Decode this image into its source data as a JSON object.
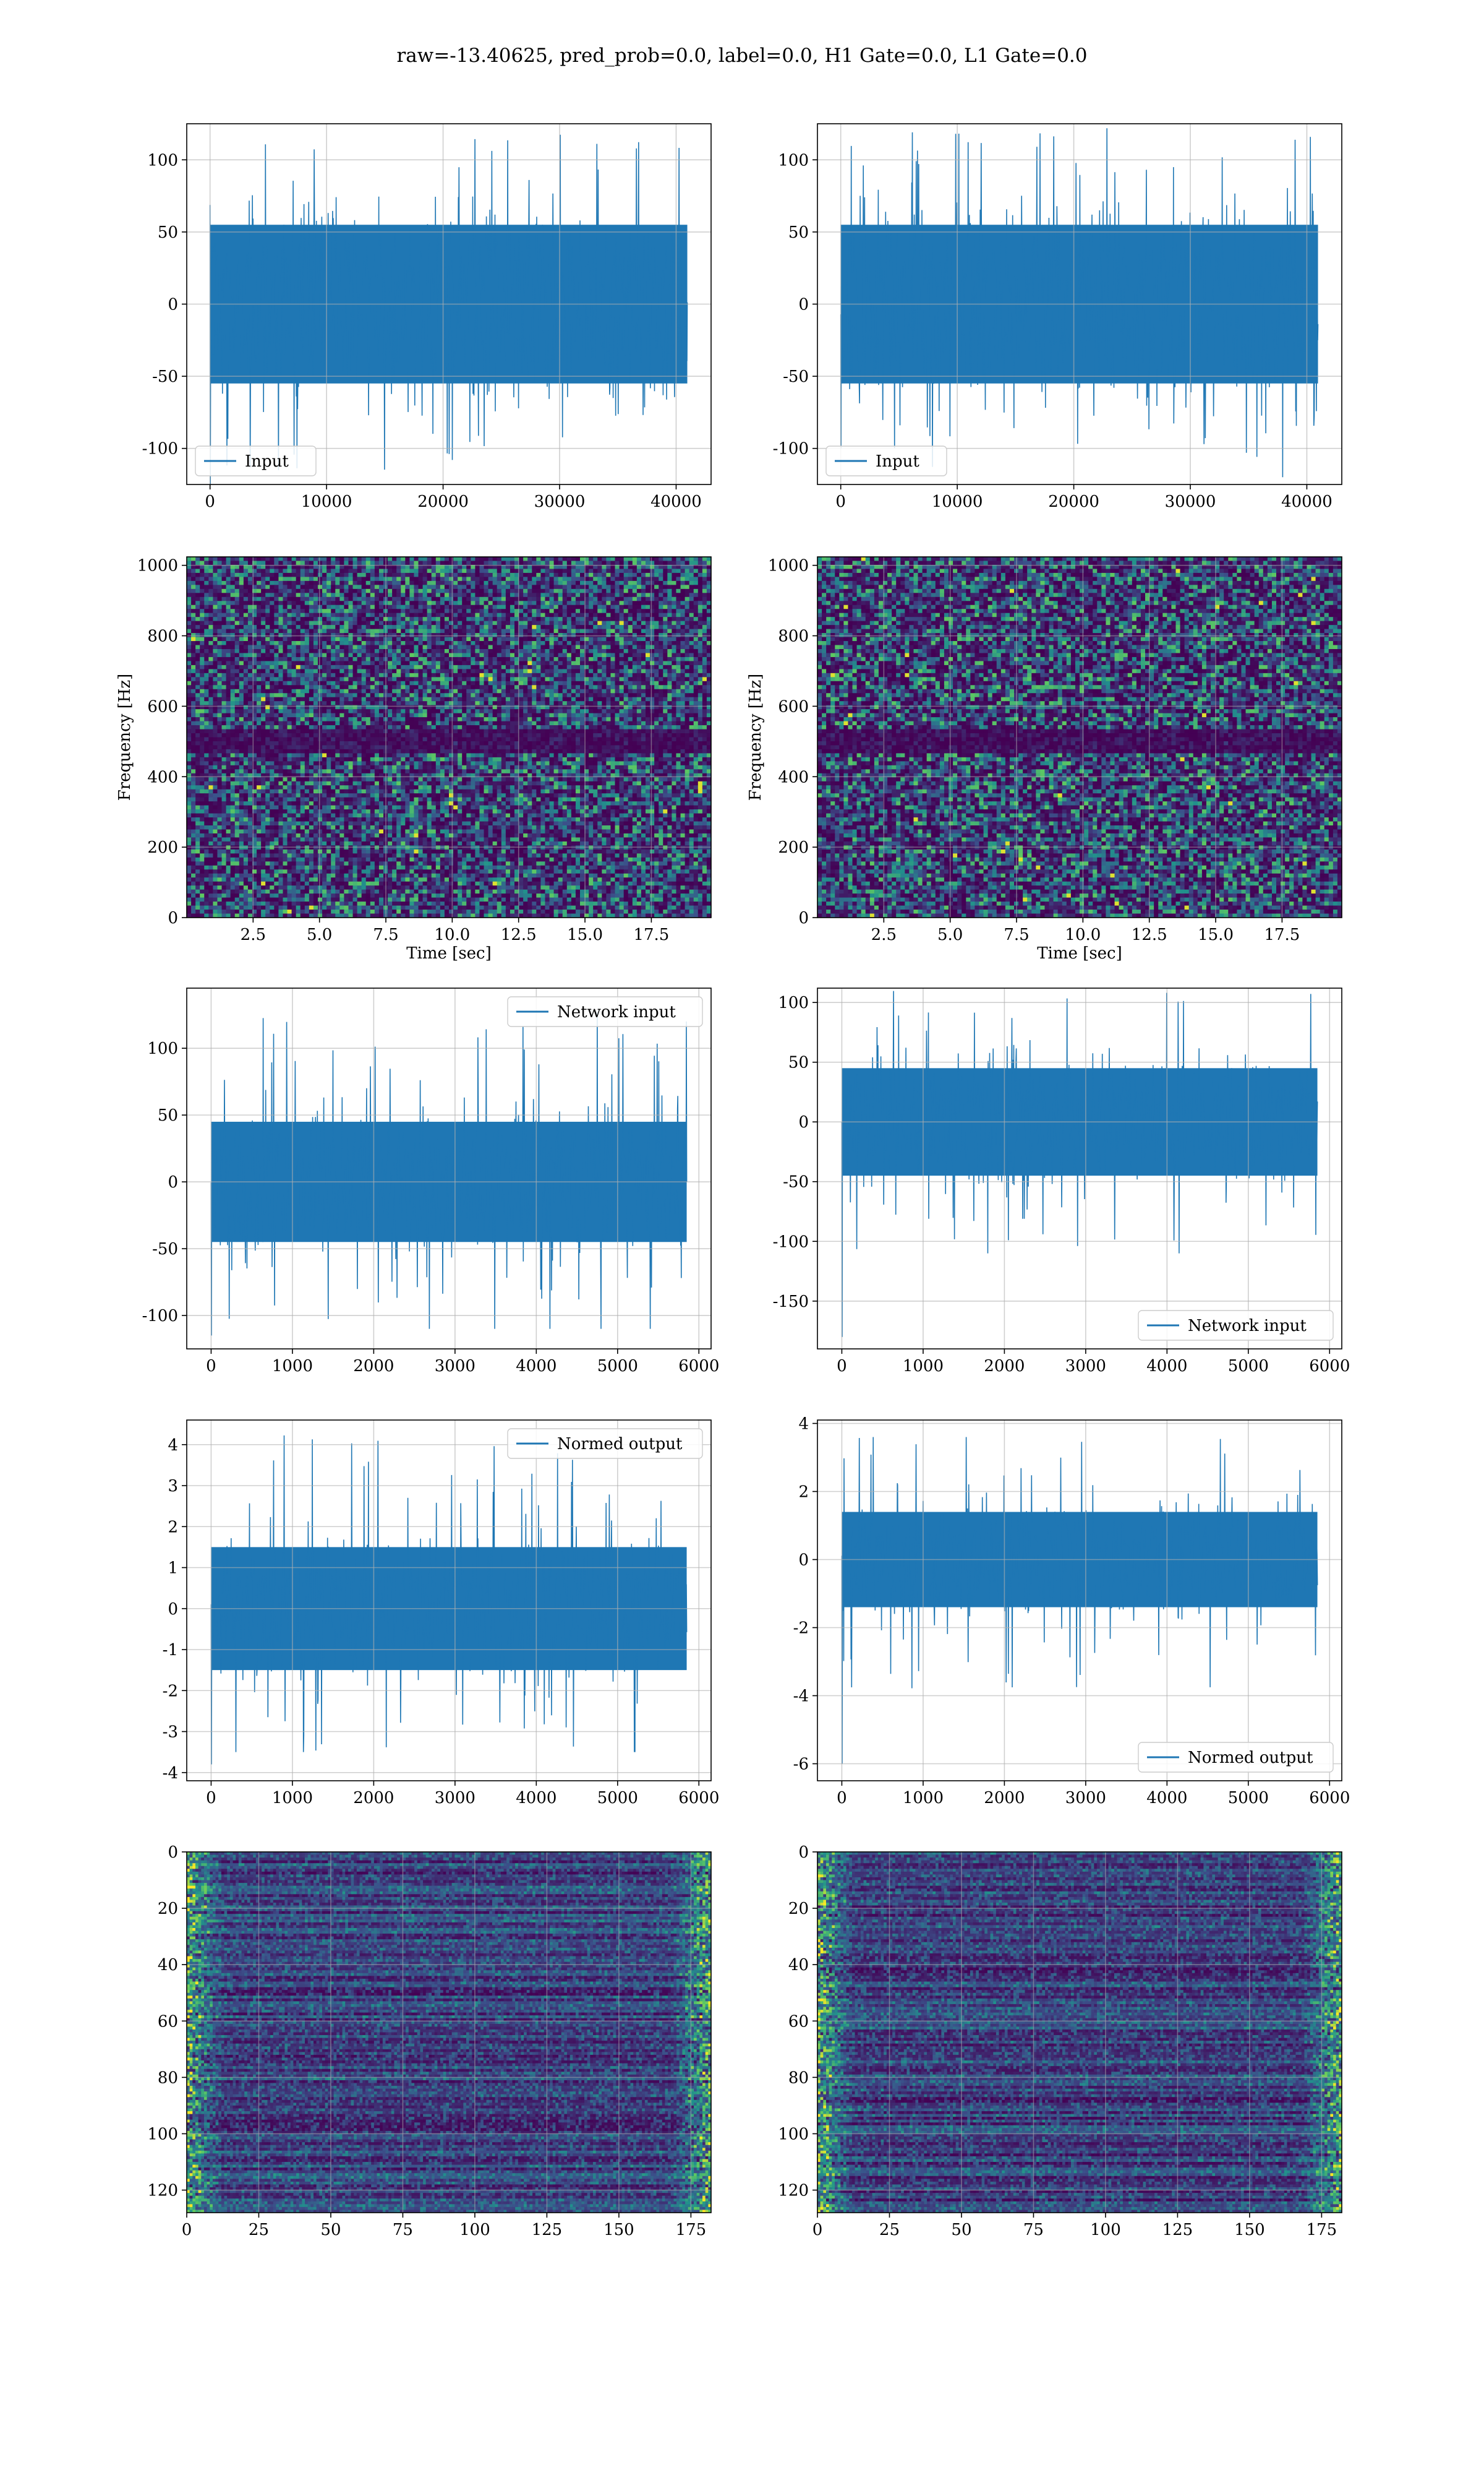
{
  "figure": {
    "suptitle": "raw=-13.40625, pred_prob=0.0, label=0.0, H1 Gate=0.0, L1 Gate=0.0",
    "colors": {
      "line": "#1f77b4",
      "grid": "#b0b0b0",
      "viridis_low": "#440154",
      "viridis_mid": "#21918c",
      "viridis_high": "#fde725"
    }
  },
  "chart_data": [
    {
      "type": "line",
      "row": 1,
      "col": 1,
      "title": "",
      "xlabel": "",
      "ylabel": "",
      "xlim": [
        -2000,
        43000
      ],
      "ylim": [
        -125,
        125
      ],
      "xticks": [
        0,
        10000,
        20000,
        30000,
        40000
      ],
      "yticks": [
        -100,
        -50,
        0,
        50,
        100
      ],
      "legend": "lower-left",
      "series": [
        {
          "name": "Input",
          "x_range": [
            0,
            40959
          ],
          "core_amplitude": 55,
          "peak_min": -115,
          "peak_max": 120,
          "drop_to": -125
        }
      ],
      "grid": true
    },
    {
      "type": "line",
      "row": 1,
      "col": 2,
      "title": "",
      "xlabel": "",
      "ylabel": "",
      "xlim": [
        -2000,
        43000
      ],
      "ylim": [
        -125,
        125
      ],
      "xticks": [
        0,
        10000,
        20000,
        30000,
        40000
      ],
      "yticks": [
        -100,
        -50,
        0,
        50,
        100
      ],
      "legend": "lower-left",
      "series": [
        {
          "name": "Input",
          "x_range": [
            0,
            40959
          ],
          "core_amplitude": 55,
          "peak_min": -120,
          "peak_max": 122,
          "drop_to": -100
        }
      ],
      "grid": true
    },
    {
      "type": "heatmap",
      "row": 2,
      "col": 1,
      "title": "",
      "xlabel": "Time [sec]",
      "ylabel": "Frequency [Hz]",
      "xlim": [
        0,
        19.75
      ],
      "ylim": [
        0,
        1024
      ],
      "xticks": [
        2.5,
        5.0,
        7.5,
        10.0,
        12.5,
        15.0,
        17.5
      ],
      "yticks": [
        0,
        200,
        400,
        600,
        800,
        1000
      ],
      "colormap": "viridis",
      "dark_band_hz": [
        470,
        530
      ],
      "grid": true
    },
    {
      "type": "heatmap",
      "row": 2,
      "col": 2,
      "title": "",
      "xlabel": "Time [sec]",
      "ylabel": "Frequency [Hz]",
      "xlim": [
        0,
        19.75
      ],
      "ylim": [
        0,
        1024
      ],
      "xticks": [
        2.5,
        5.0,
        7.5,
        10.0,
        12.5,
        15.0,
        17.5
      ],
      "yticks": [
        0,
        200,
        400,
        600,
        800,
        1000
      ],
      "colormap": "viridis",
      "dark_band_hz": [
        470,
        530
      ],
      "grid": true
    },
    {
      "type": "line",
      "row": 3,
      "col": 1,
      "title": "",
      "xlabel": "",
      "ylabel": "",
      "xlim": [
        -300,
        6150
      ],
      "ylim": [
        -125,
        145
      ],
      "xticks": [
        0,
        1000,
        2000,
        3000,
        4000,
        5000,
        6000
      ],
      "yticks": [
        -100,
        -50,
        0,
        50,
        100
      ],
      "legend": "top-right",
      "series": [
        {
          "name": "Network input",
          "x_range": [
            0,
            5850
          ],
          "core_amplitude": 45,
          "peak_min": -110,
          "peak_max": 130,
          "drop_to": -115
        }
      ],
      "grid": true
    },
    {
      "type": "line",
      "row": 3,
      "col": 2,
      "title": "",
      "xlabel": "",
      "ylabel": "",
      "xlim": [
        -300,
        6150
      ],
      "ylim": [
        -190,
        112
      ],
      "xticks": [
        0,
        1000,
        2000,
        3000,
        4000,
        5000,
        6000
      ],
      "yticks": [
        -150,
        -100,
        -50,
        0,
        50,
        100
      ],
      "legend": "lower-right",
      "series": [
        {
          "name": "Network input",
          "x_range": [
            0,
            5850
          ],
          "core_amplitude": 45,
          "peak_min": -110,
          "peak_max": 112,
          "drop_to": -180
        }
      ],
      "grid": true
    },
    {
      "type": "line",
      "row": 4,
      "col": 1,
      "title": "",
      "xlabel": "",
      "ylabel": "",
      "xlim": [
        -300,
        6150
      ],
      "ylim": [
        -4.2,
        4.6
      ],
      "xticks": [
        0,
        1000,
        2000,
        3000,
        4000,
        5000,
        6000
      ],
      "yticks": [
        -4,
        -3,
        -2,
        -1,
        0,
        1,
        2,
        3,
        4
      ],
      "legend": "top-right",
      "series": [
        {
          "name": "Normed output",
          "x_range": [
            0,
            5850
          ],
          "core_amplitude": 1.5,
          "peak_min": -3.5,
          "peak_max": 4.3,
          "drop_to": -3.8
        }
      ],
      "grid": true
    },
    {
      "type": "line",
      "row": 4,
      "col": 2,
      "title": "",
      "xlabel": "",
      "ylabel": "",
      "xlim": [
        -300,
        6150
      ],
      "ylim": [
        -6.5,
        4.1
      ],
      "xticks": [
        0,
        1000,
        2000,
        3000,
        4000,
        5000,
        6000
      ],
      "yticks": [
        -6,
        -4,
        -2,
        0,
        2,
        4
      ],
      "legend": "lower-right",
      "series": [
        {
          "name": "Normed output",
          "x_range": [
            0,
            5850
          ],
          "core_amplitude": 1.4,
          "peak_min": -4.0,
          "peak_max": 3.6,
          "drop_to": -6.0
        }
      ],
      "grid": true
    },
    {
      "type": "heatmap",
      "row": 5,
      "col": 1,
      "title": "",
      "xlabel": "",
      "ylabel": "",
      "xlim": [
        0,
        182
      ],
      "ylim": [
        128,
        0
      ],
      "xticks": [
        0,
        25,
        50,
        75,
        100,
        125,
        150,
        175
      ],
      "yticks": [
        0,
        20,
        40,
        60,
        80,
        100,
        120
      ],
      "colormap": "viridis",
      "grid": true
    },
    {
      "type": "heatmap",
      "row": 5,
      "col": 2,
      "title": "",
      "xlabel": "",
      "ylabel": "",
      "xlim": [
        0,
        182
      ],
      "ylim": [
        128,
        0
      ],
      "xticks": [
        0,
        25,
        50,
        75,
        100,
        125,
        150,
        175
      ],
      "yticks": [
        0,
        20,
        40,
        60,
        80,
        100,
        120
      ],
      "colormap": "viridis",
      "grid": true
    }
  ]
}
